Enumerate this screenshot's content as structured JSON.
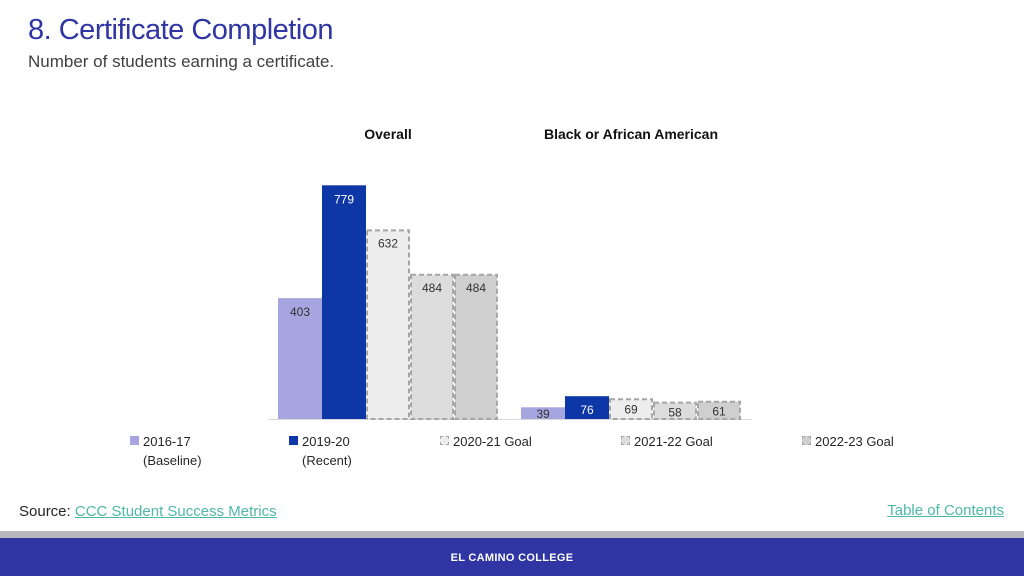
{
  "title": "8. Certificate Completion",
  "subtitle": "Number of students earning a certificate.",
  "source": {
    "label": "Source:",
    "link_text": "CCC Student Success Metrics"
  },
  "toc_link": "Table of Contents",
  "footer": "EL CAMINO COLLEGE",
  "colors": {
    "title": "#2f35a3",
    "baseline": "#a7a5e0",
    "recent": "#0d36a6",
    "goal_2020_21": "#ededed",
    "goal_2021_22": "#dcdcdc",
    "goal_2022_23": "#cfcfcf",
    "goal_border": "#a6a6a6",
    "link": "#4fb8a8",
    "footer": "#2f35a3"
  },
  "chart_data": {
    "type": "bar",
    "categories": [
      "Overall",
      "Black or African American"
    ],
    "series": [
      {
        "name": "2016-17\n(Baseline)",
        "values": [
          403,
          39
        ]
      },
      {
        "name": "2019-20\n(Recent)",
        "values": [
          779,
          76
        ]
      },
      {
        "name": "2020-21 Goal",
        "values": [
          632,
          69
        ]
      },
      {
        "name": "2021-22 Goal",
        "values": [
          484,
          58
        ]
      },
      {
        "name": "2022-23 Goal",
        "values": [
          484,
          61
        ]
      }
    ],
    "ylim": [
      0,
      800
    ],
    "grid": false,
    "legend": "bottom"
  }
}
